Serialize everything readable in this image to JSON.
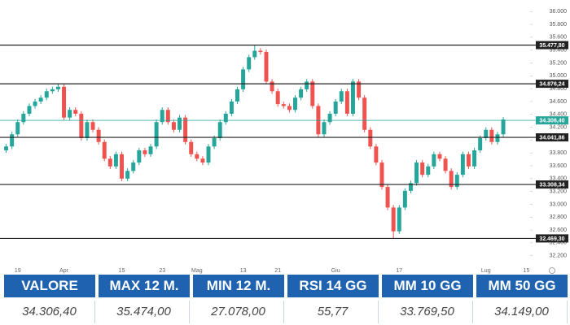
{
  "chart_data": {
    "type": "candlestick",
    "up_color": "#26a69a",
    "down_color": "#ef5350",
    "categories": [
      null,
      null,
      "19",
      null,
      null,
      null,
      null,
      null,
      null,
      null,
      "Apr",
      null,
      null,
      null,
      null,
      null,
      null,
      null,
      null,
      null,
      "15",
      null,
      null,
      null,
      null,
      null,
      null,
      "23",
      null,
      null,
      null,
      null,
      null,
      "Mag",
      null,
      null,
      null,
      null,
      null,
      null,
      null,
      "13",
      null,
      null,
      null,
      null,
      null,
      "21",
      null,
      null,
      null,
      null,
      null,
      null,
      null,
      null,
      null,
      "Giu",
      null,
      null,
      null,
      null,
      null,
      null,
      null,
      null,
      null,
      null,
      "17",
      null,
      null,
      null,
      null,
      null,
      null,
      null,
      null,
      null,
      null,
      null,
      null,
      null,
      null,
      "Lug",
      null,
      null,
      null,
      null,
      null,
      null,
      "15"
    ],
    "open": [
      33840,
      33900,
      34090,
      34280,
      34410,
      34530,
      34600,
      34660,
      34760,
      34790,
      34830,
      34350,
      34470,
      34410,
      34030,
      34280,
      34160,
      33970,
      33710,
      33590,
      33780,
      33400,
      33520,
      33650,
      33840,
      33780,
      33900,
      34280,
      34470,
      34280,
      34160,
      34350,
      33970,
      33780,
      33710,
      33650,
      33900,
      34030,
      34280,
      34410,
      34600,
      34790,
      35100,
      35290,
      35390,
      35370,
      34910,
      34760,
      34560,
      34530,
      34470,
      34660,
      34790,
      34910,
      34530,
      34090,
      34280,
      34410,
      34600,
      34760,
      34410,
      34910,
      34660,
      34160,
      33900,
      33650,
      33270,
      32950,
      32580,
      32950,
      33210,
      33330,
      33650,
      33460,
      33590,
      33780,
      33710,
      33520,
      33270,
      33460,
      33780,
      33590,
      33840,
      34030,
      34160,
      33970,
      34090,
      null,
      null,
      null,
      null
    ],
    "high": [
      33940,
      34130,
      34320,
      34450,
      34570,
      34640,
      34700,
      34800,
      34830,
      34870,
      34870,
      34510,
      34510,
      34450,
      34320,
      34320,
      34200,
      34010,
      33750,
      33820,
      33820,
      33560,
      33690,
      33880,
      33880,
      33940,
      34320,
      34510,
      34510,
      34320,
      34390,
      34390,
      34010,
      33820,
      33750,
      33940,
      34070,
      34320,
      34450,
      34640,
      34830,
      35140,
      35330,
      35470,
      35430,
      35410,
      34950,
      34800,
      34600,
      34570,
      34700,
      34830,
      34950,
      34950,
      34570,
      34320,
      34450,
      34640,
      34800,
      34800,
      34950,
      34950,
      34700,
      34200,
      33940,
      33690,
      33310,
      32990,
      32990,
      33250,
      33370,
      33690,
      33690,
      33630,
      33820,
      33820,
      33750,
      33560,
      33500,
      33820,
      33820,
      33880,
      34070,
      34200,
      34200,
      34130,
      34360,
      null,
      null,
      null,
      null
    ],
    "low": [
      33800,
      33860,
      34050,
      34240,
      34370,
      34490,
      34560,
      34620,
      34720,
      34750,
      34310,
      34310,
      34370,
      33990,
      33990,
      34120,
      33930,
      33670,
      33550,
      33550,
      33360,
      33360,
      33480,
      33610,
      33740,
      33740,
      33860,
      34240,
      34240,
      34120,
      34120,
      33930,
      33740,
      33670,
      33610,
      33610,
      33860,
      33990,
      34240,
      34370,
      34560,
      34750,
      35060,
      35250,
      35330,
      34870,
      34720,
      34520,
      34490,
      34430,
      34430,
      34620,
      34750,
      34490,
      34050,
      34050,
      34240,
      34370,
      34560,
      34370,
      34370,
      34620,
      34120,
      33860,
      33610,
      33230,
      32910,
      32470,
      32540,
      32910,
      33170,
      33290,
      33420,
      33420,
      33550,
      33670,
      33480,
      33230,
      33230,
      33420,
      33550,
      33550,
      33800,
      33990,
      33930,
      33930,
      34050,
      null,
      null,
      null,
      null
    ],
    "close": [
      33900,
      34090,
      34280,
      34410,
      34530,
      34600,
      34660,
      34760,
      34790,
      34830,
      34350,
      34470,
      34410,
      34030,
      34280,
      34160,
      33970,
      33710,
      33590,
      33780,
      33400,
      33520,
      33650,
      33840,
      33780,
      33900,
      34280,
      34470,
      34280,
      34160,
      34350,
      33970,
      33780,
      33710,
      33650,
      33900,
      34030,
      34280,
      34410,
      34600,
      34790,
      35100,
      35290,
      35390,
      35370,
      34910,
      34760,
      34560,
      34530,
      34470,
      34660,
      34790,
      34910,
      34530,
      34090,
      34280,
      34410,
      34600,
      34760,
      34410,
      34910,
      34660,
      34160,
      33900,
      33650,
      33270,
      32950,
      32580,
      32950,
      33210,
      33330,
      33650,
      33460,
      33590,
      33780,
      33710,
      33520,
      33270,
      33460,
      33780,
      33590,
      33840,
      34030,
      34160,
      33970,
      34090,
      34320,
      null,
      null,
      null,
      null
    ],
    "ylim": [
      32070,
      36180
    ],
    "yticks": [
      {
        "value": 32200,
        "label": "32.200"
      },
      {
        "value": 32400,
        "label": "32.400"
      },
      {
        "value": 32600,
        "label": "32.600"
      },
      {
        "value": 32800,
        "label": "32.800"
      },
      {
        "value": 33000,
        "label": "33.000"
      },
      {
        "value": 33200,
        "label": "33.200"
      },
      {
        "value": 33400,
        "label": "33.400"
      },
      {
        "value": 33600,
        "label": "33.600"
      },
      {
        "value": 33800,
        "label": "33.800"
      },
      {
        "value": 34000,
        "label": "34.000"
      },
      {
        "value": 34200,
        "label": "34.200"
      },
      {
        "value": 34400,
        "label": "34.400"
      },
      {
        "value": 34600,
        "label": "34.600"
      },
      {
        "value": 34800,
        "label": "34.800"
      },
      {
        "value": 35000,
        "label": "35.000"
      },
      {
        "value": 35200,
        "label": "35.200"
      },
      {
        "value": 35400,
        "label": "35.400"
      },
      {
        "value": 35600,
        "label": "35.600"
      },
      {
        "value": 35800,
        "label": "35.800"
      },
      {
        "value": 36000,
        "label": "36.000"
      }
    ],
    "levels": [
      {
        "value": 35477.8,
        "label": "35.477,80",
        "color": "#222222"
      },
      {
        "value": 34876.24,
        "label": "34.876,24",
        "color": "#222222"
      },
      {
        "value": 34306.4,
        "label": "34.306,40",
        "color": "#26a69a"
      },
      {
        "value": 34041.86,
        "label": "34.041,86",
        "color": "#222222"
      },
      {
        "value": 33308.34,
        "label": "33.308,34",
        "color": "#222222"
      },
      {
        "value": 32469.3,
        "label": "32.469,30",
        "color": "#222222"
      }
    ]
  },
  "table": {
    "headers": [
      "VALORE",
      "MAX 12 M.",
      "MIN 12 M.",
      "RSI 14 GG",
      "MM 10 GG",
      "MM 50 GG"
    ],
    "values": [
      "34.306,40",
      "35.474,00",
      "27.078,00",
      "55,77",
      "33.769,50",
      "34.149,00"
    ]
  }
}
